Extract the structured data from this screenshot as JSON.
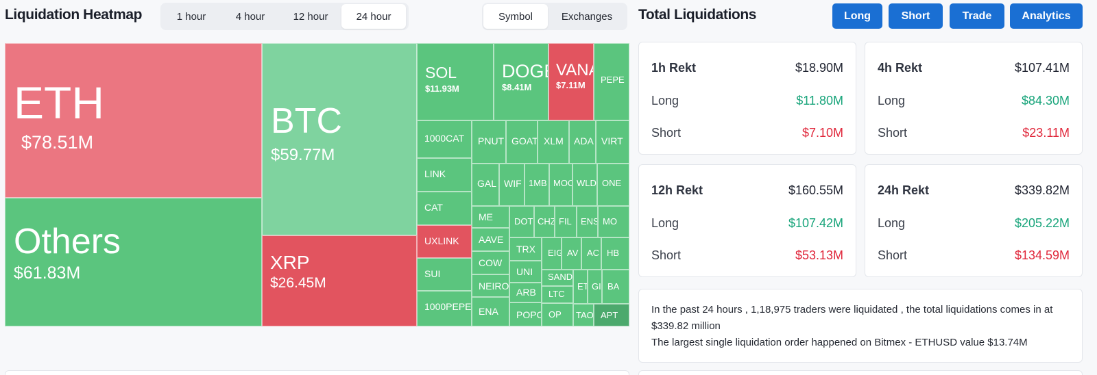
{
  "heatmap": {
    "title": "Liquidation Heatmap",
    "time_tabs": [
      {
        "label": "1 hour",
        "active": false
      },
      {
        "label": "4 hour",
        "active": false
      },
      {
        "label": "12 hour",
        "active": false
      },
      {
        "label": "24 hour",
        "active": true
      }
    ],
    "view_tabs": [
      {
        "label": "Symbol",
        "active": true
      },
      {
        "label": "Exchanges",
        "active": false
      }
    ],
    "tiles": [
      {
        "symbol": "ETH",
        "value": "$78.51M",
        "color": "pink"
      },
      {
        "symbol": "Others",
        "value": "$61.83M",
        "color": "green"
      },
      {
        "symbol": "BTC",
        "value": "$59.77M",
        "color": "light-green"
      },
      {
        "symbol": "XRP",
        "value": "$26.45M",
        "color": "red"
      },
      {
        "symbol": "SOL",
        "value": "$11.93M",
        "color": "green"
      },
      {
        "symbol": "DOGE",
        "value": "$8.41M",
        "color": "green"
      },
      {
        "symbol": "VANA",
        "value": "$7.11M",
        "color": "red"
      },
      {
        "symbol": "PEPE",
        "value": "",
        "color": "green"
      },
      {
        "symbol": "1000CAT",
        "value": "",
        "color": "green"
      },
      {
        "symbol": "PNUT",
        "value": "",
        "color": "green"
      },
      {
        "symbol": "GOAT",
        "value": "",
        "color": "green"
      },
      {
        "symbol": "XLM",
        "value": "",
        "color": "green"
      },
      {
        "symbol": "ADA",
        "value": "",
        "color": "green"
      },
      {
        "symbol": "VIRT",
        "value": "",
        "color": "green"
      },
      {
        "symbol": "LINK",
        "value": "",
        "color": "green"
      },
      {
        "symbol": "GAL",
        "value": "",
        "color": "green"
      },
      {
        "symbol": "WIF",
        "value": "",
        "color": "green"
      },
      {
        "symbol": "1MB",
        "value": "",
        "color": "green"
      },
      {
        "symbol": "MOO",
        "value": "",
        "color": "green"
      },
      {
        "symbol": "WLD",
        "value": "",
        "color": "green"
      },
      {
        "symbol": "ONE",
        "value": "",
        "color": "green"
      },
      {
        "symbol": "CAT",
        "value": "",
        "color": "green"
      },
      {
        "symbol": "ME",
        "value": "",
        "color": "green"
      },
      {
        "symbol": "DOT",
        "value": "",
        "color": "green"
      },
      {
        "symbol": "CHZ",
        "value": "",
        "color": "green"
      },
      {
        "symbol": "FIL",
        "value": "",
        "color": "green"
      },
      {
        "symbol": "ENS",
        "value": "",
        "color": "green"
      },
      {
        "symbol": "MO",
        "value": "",
        "color": "green"
      },
      {
        "symbol": "UXLINK",
        "value": "",
        "color": "red"
      },
      {
        "symbol": "AAVE",
        "value": "",
        "color": "green"
      },
      {
        "symbol": "TRX",
        "value": "",
        "color": "green"
      },
      {
        "symbol": "EIG",
        "value": "",
        "color": "green"
      },
      {
        "symbol": "AV",
        "value": "",
        "color": "green"
      },
      {
        "symbol": "AC",
        "value": "",
        "color": "green"
      },
      {
        "symbol": "HB",
        "value": "",
        "color": "green"
      },
      {
        "symbol": "SUI",
        "value": "",
        "color": "green"
      },
      {
        "symbol": "COW",
        "value": "",
        "color": "green"
      },
      {
        "symbol": "UNI",
        "value": "",
        "color": "green"
      },
      {
        "symbol": "SAND",
        "value": "",
        "color": "green"
      },
      {
        "symbol": "ET",
        "value": "",
        "color": "green"
      },
      {
        "symbol": "GI",
        "value": "",
        "color": "green"
      },
      {
        "symbol": "BA",
        "value": "",
        "color": "green"
      },
      {
        "symbol": "NEIRO",
        "value": "",
        "color": "green"
      },
      {
        "symbol": "ARB",
        "value": "",
        "color": "green"
      },
      {
        "symbol": "LTC",
        "value": "",
        "color": "green"
      },
      {
        "symbol": "1000PEPE",
        "value": "",
        "color": "green"
      },
      {
        "symbol": "ENA",
        "value": "",
        "color": "green"
      },
      {
        "symbol": "POPC",
        "value": "",
        "color": "green"
      },
      {
        "symbol": "OP",
        "value": "",
        "color": "green"
      },
      {
        "symbol": "TAO",
        "value": "",
        "color": "green"
      },
      {
        "symbol": "APT",
        "value": "",
        "color": "dark-green"
      }
    ]
  },
  "liquidations": {
    "title": "Total Liquidations",
    "buttons": [
      "Long",
      "Short",
      "Trade",
      "Analytics"
    ],
    "cards": [
      {
        "label": "1h Rekt",
        "total": "$18.90M",
        "long_label": "Long",
        "long": "$11.80M",
        "short_label": "Short",
        "short": "$7.10M"
      },
      {
        "label": "4h Rekt",
        "total": "$107.41M",
        "long_label": "Long",
        "long": "$84.30M",
        "short_label": "Short",
        "short": "$23.11M"
      },
      {
        "label": "12h Rekt",
        "total": "$160.55M",
        "long_label": "Long",
        "long": "$107.42M",
        "short_label": "Short",
        "short": "$53.13M"
      },
      {
        "label": "24h Rekt",
        "total": "$339.82M",
        "long_label": "Long",
        "long": "$205.22M",
        "short_label": "Short",
        "short": "$134.59M"
      }
    ],
    "summary_line1": "In the past 24 hours , 1,18,975 traders were liquidated , the total liquidations comes in at $339.82 million",
    "summary_line2": "The largest single liquidation order happened on Bitmex - ETHUSD value $13.74M"
  },
  "colors": {
    "accent": "#1a6fd3",
    "long": "#17a47a",
    "short": "#e0273b",
    "tile_green": "#5bc57e",
    "tile_light_green": "#7fd39f",
    "tile_red": "#e2545f",
    "tile_pink": "#eb7681"
  }
}
